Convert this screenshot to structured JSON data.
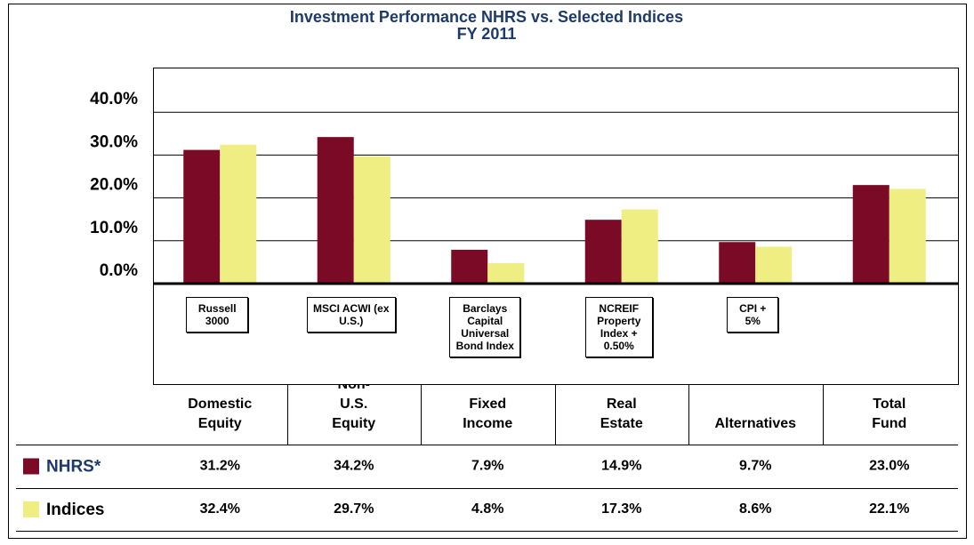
{
  "chart_data": {
    "type": "bar",
    "title": "Investment Performance NHRS vs. Selected Indices",
    "subtitle": "FY 2011",
    "categories": [
      "Domestic Equity",
      "Non-U.S. Equity",
      "Fixed Income",
      "Real Estate",
      "Alternatives",
      "Total Fund"
    ],
    "index_labels": [
      "Russell 3000",
      "MSCI ACWI (ex U.S.)",
      "Barclays Capital Universal Bond Index",
      "NCREIF Property Index + 0.50%",
      "CPI + 5%",
      null
    ],
    "series": [
      {
        "name": "NHRS*",
        "color": "#7a0a26",
        "values": [
          31.2,
          34.2,
          7.9,
          14.9,
          9.7,
          23.0
        ],
        "value_labels": [
          "31.2%",
          "34.2%",
          "7.9%",
          "14.9%",
          "9.7%",
          "23.0%"
        ]
      },
      {
        "name": "Indices",
        "color": "#eeee82",
        "values": [
          32.4,
          29.7,
          4.8,
          17.3,
          8.6,
          22.1
        ],
        "value_labels": [
          "32.4%",
          "29.7%",
          "4.8%",
          "17.3%",
          "8.6%",
          "22.1%"
        ]
      }
    ],
    "ylim": [
      0,
      50
    ],
    "yticks": [
      {
        "value": 0,
        "label": "0.0%"
      },
      {
        "value": 10,
        "label": "10.0%"
      },
      {
        "value": 20,
        "label": "20.0%"
      },
      {
        "value": 30,
        "label": "30.0%"
      },
      {
        "value": 40,
        "label": "40.0%"
      }
    ],
    "grid": true
  }
}
